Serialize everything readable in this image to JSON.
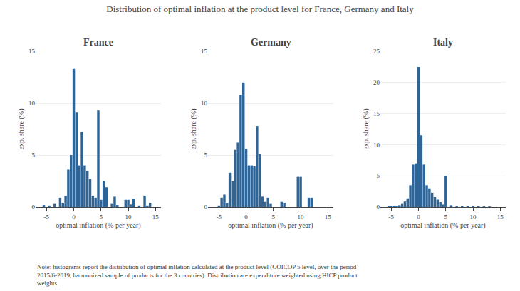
{
  "title": "Distribution of optimal inflation at the product level for France, Germany and Italy",
  "annotations": [
    "Note: histograms report the distribution of optimal inflation calculated at the product level (COICOP 5 level, over the period\n2015/6-2019, harmonized sample of products for the 3 countries). Distribution are expenditure weighted using HICP product\nweights."
  ],
  "chart_data": [
    {
      "type": "bar",
      "title": "France",
      "xlabel": "optimal inflation (% per year)",
      "ylabel": "exp. share (%)",
      "color": "#2e6496",
      "x": [
        -5.5,
        -4.5,
        -3.5,
        -2.5,
        -2.0,
        -1.5,
        -1.0,
        -0.5,
        0.0,
        0.5,
        1.0,
        1.5,
        2.0,
        2.5,
        3.0,
        3.5,
        4.0,
        4.5,
        5.0,
        5.5,
        6.0,
        7.0,
        7.5,
        8.0,
        9.5,
        10.0,
        10.5,
        11.0,
        12.0,
        13.0,
        13.5,
        14.0
      ],
      "values": [
        0.2,
        0.15,
        0.3,
        0.9,
        0.4,
        1.1,
        3.6,
        5.0,
        13.3,
        9.1,
        4.0,
        7.2,
        4.0,
        3.5,
        2.7,
        1.1,
        0.9,
        9.3,
        0.7,
        2.5,
        1.9,
        0.3,
        1.0,
        0.2,
        0.7,
        0.7,
        0.25,
        0.8,
        0.15,
        1.1,
        0.15,
        0.4
      ],
      "xlim": [
        -7,
        16
      ],
      "xticks": [
        -5,
        0,
        5,
        10,
        15
      ],
      "ylim": [
        0,
        15
      ],
      "yticks": [
        0,
        5,
        10,
        15
      ],
      "grid": true
    },
    {
      "type": "bar",
      "title": "Germany",
      "xlabel": "optimal inflation (% per year)",
      "ylabel": "exp. share (%)",
      "color": "#2e6496",
      "x": [
        -5.0,
        -4.5,
        -4.0,
        -3.5,
        -3.0,
        -2.5,
        -2.0,
        -1.5,
        -1.0,
        -0.5,
        0.0,
        0.5,
        1.0,
        1.5,
        2.0,
        2.5,
        3.0,
        3.5,
        4.0,
        4.5,
        6.5,
        7.0,
        9.5,
        10.0,
        11.5,
        12.0
      ],
      "values": [
        0.15,
        0.9,
        1.2,
        0.4,
        3.3,
        2.5,
        5.5,
        6.2,
        10.8,
        12.0,
        5.6,
        4.0,
        4.0,
        3.9,
        7.8,
        5.1,
        1.0,
        0.5,
        0.9,
        0.3,
        0.5,
        0.4,
        2.9,
        2.9,
        0.9,
        0.9
      ],
      "xlim": [
        -7,
        16
      ],
      "xticks": [
        -5,
        0,
        5,
        10,
        15
      ],
      "ylim": [
        0,
        15
      ],
      "yticks": [
        0,
        5,
        10,
        15
      ],
      "grid": true
    },
    {
      "type": "bar",
      "title": "Italy",
      "xlabel": "optimal inflation (% per year)",
      "ylabel": "exp. share (%)",
      "color": "#2e6496",
      "x": [
        -5.5,
        -5.0,
        -4.5,
        -4.0,
        -3.5,
        -3.0,
        -2.5,
        -2.0,
        -1.5,
        -1.0,
        -0.5,
        0.0,
        0.5,
        1.0,
        1.5,
        2.0,
        2.5,
        3.0,
        3.5,
        4.0,
        4.5,
        5.0,
        6.0,
        7.0,
        8.0,
        9.0,
        10.0,
        11.0,
        12.0,
        13.0
      ],
      "values": [
        0.1,
        0.1,
        0.1,
        0.2,
        0.3,
        0.5,
        0.9,
        1.4,
        3.5,
        6.8,
        7.0,
        22.5,
        11.5,
        6.8,
        3.5,
        3.0,
        2.3,
        1.6,
        1.2,
        0.8,
        0.4,
        5.0,
        0.3,
        0.2,
        0.2,
        0.15,
        0.15,
        0.1,
        0.1,
        0.1
      ],
      "xlim": [
        -7,
        16
      ],
      "xticks": [
        -5,
        0,
        5,
        10,
        15
      ],
      "ylim": [
        0,
        25
      ],
      "yticks": [
        0,
        5,
        10,
        15,
        20,
        25
      ],
      "grid": true
    }
  ]
}
